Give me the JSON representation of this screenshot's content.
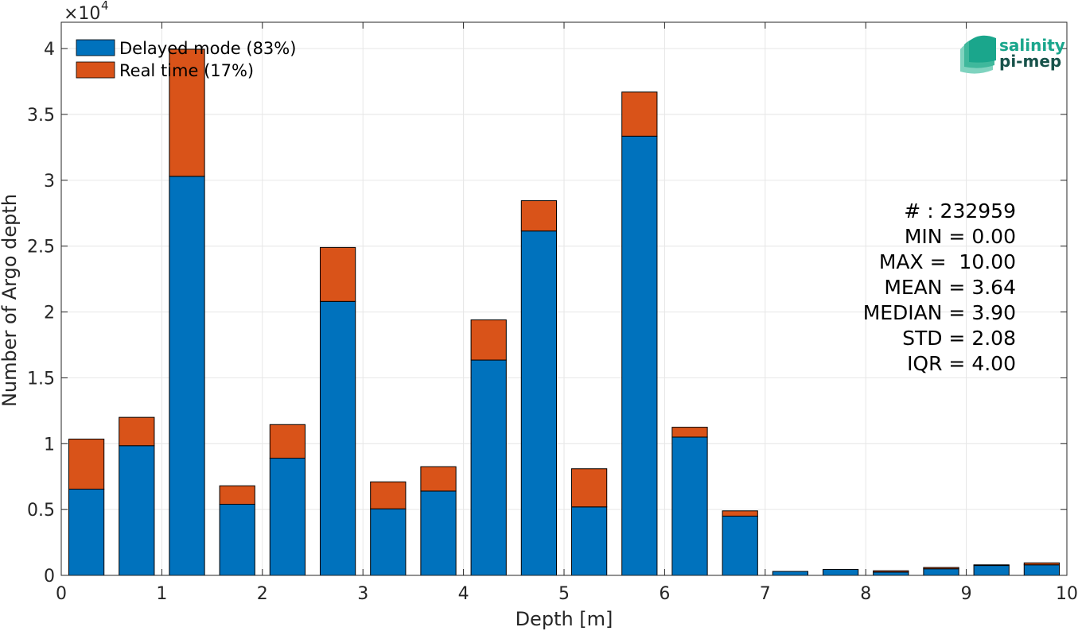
{
  "chart_data": {
    "type": "bar",
    "stacked": true,
    "xlabel": "Depth [m]",
    "ylabel": "Number of Argo depth",
    "xlim": [
      0,
      10
    ],
    "ylim": [
      0,
      42000
    ],
    "x_ticks": [
      "0",
      "1",
      "2",
      "3",
      "4",
      "5",
      "6",
      "7",
      "8",
      "9",
      "10"
    ],
    "y_ticks": [
      "0",
      "0.5",
      "1",
      "1.5",
      "2",
      "2.5",
      "3",
      "3.5",
      "4"
    ],
    "y_tick_values": [
      0,
      5000,
      10000,
      15000,
      20000,
      25000,
      30000,
      35000,
      40000
    ],
    "y_exponent_label": "×10",
    "y_exponent_power": "4",
    "bin_centers": [
      0.25,
      0.75,
      1.25,
      1.75,
      2.25,
      2.75,
      3.25,
      3.75,
      4.25,
      4.75,
      5.25,
      5.75,
      6.25,
      6.75,
      7.25,
      7.75,
      8.25,
      8.75,
      9.25,
      9.75
    ],
    "series": [
      {
        "name": "Delayed mode (83%)",
        "color": "#0072BD",
        "values": [
          6550,
          9850,
          30300,
          5400,
          8900,
          20800,
          5050,
          6400,
          16350,
          26150,
          5200,
          33350,
          10500,
          4500,
          300,
          450,
          250,
          500,
          750,
          800
        ]
      },
      {
        "name": "Real time (17%)",
        "color": "#D95319",
        "values": [
          3800,
          2150,
          9650,
          1400,
          2550,
          4100,
          2050,
          1850,
          3050,
          2300,
          2900,
          3350,
          750,
          400,
          0,
          0,
          100,
          100,
          50,
          150
        ]
      }
    ],
    "stats": [
      "# : 232959",
      "MIN = 0.00",
      "MAX =  10.00",
      "MEAN = 3.64",
      "MEDIAN = 3.90",
      "STD = 2.08",
      "IQR = 4.00"
    ],
    "grid": true,
    "legend_position": "top-left"
  },
  "logo": {
    "line1": "salinity",
    "line2": "pi-mep",
    "color1": "#1aa68c",
    "color2": "#17524a"
  }
}
